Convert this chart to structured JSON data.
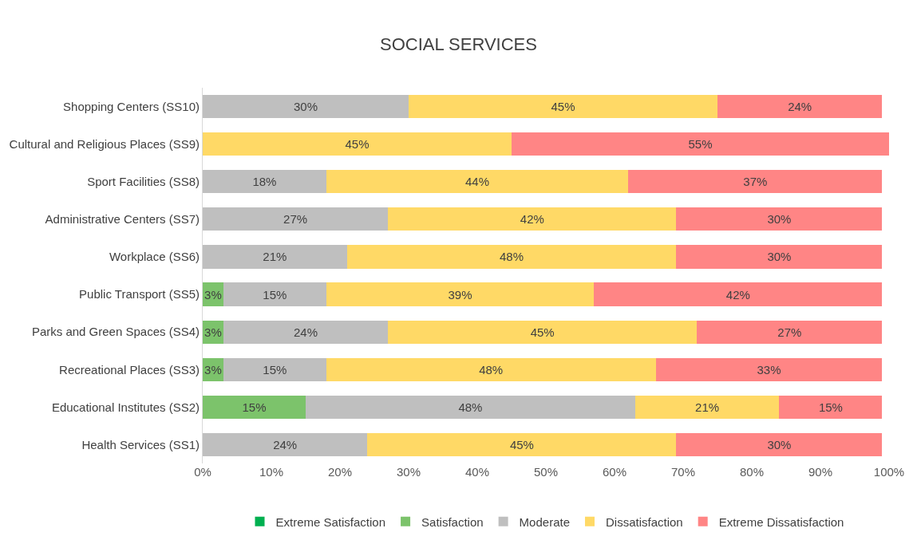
{
  "chart_data": {
    "type": "bar",
    "orientation": "horizontal",
    "stacked": true,
    "title": "SOCIAL SERVICES",
    "categories": [
      "Shopping Centers (SS10)",
      "Cultural and Religious Places (SS9)",
      "Sport Facilities (SS8)",
      "Administrative Centers (SS7)",
      "Workplace (SS6)",
      "Public Transport (SS5)",
      "Parks and Green Spaces (SS4)",
      "Recreational Places (SS3)",
      "Educational Institutes (SS2)",
      "Health Services (SS1)"
    ],
    "series": [
      {
        "name": "Extreme Satisfaction",
        "color": "#00b050",
        "values": [
          null,
          null,
          null,
          null,
          null,
          null,
          null,
          null,
          null,
          null
        ],
        "value_labels": [
          null,
          null,
          null,
          null,
          null,
          null,
          null,
          null,
          null,
          null
        ]
      },
      {
        "name": "Satisfaction",
        "color": "#7cc36b",
        "values": [
          null,
          null,
          null,
          null,
          null,
          3,
          3,
          3,
          15,
          null
        ],
        "value_labels": [
          null,
          null,
          null,
          null,
          null,
          "3%",
          "3%",
          "3%",
          "15%",
          null
        ]
      },
      {
        "name": "Moderate",
        "color": "#bfbfbf",
        "values": [
          30,
          null,
          18,
          27,
          21,
          15,
          24,
          15,
          48,
          24
        ],
        "value_labels": [
          "30%",
          null,
          "18%",
          "27%",
          "21%",
          "15%",
          "24%",
          "15%",
          "48%",
          "24%"
        ]
      },
      {
        "name": "Dissatisfaction",
        "color": "#ffd966",
        "values": [
          45,
          45,
          44,
          42,
          48,
          39,
          45,
          48,
          21,
          45
        ],
        "value_labels": [
          "45%",
          "45%",
          "44%",
          "42%",
          "48%",
          "39%",
          "45%",
          "48%",
          "21%",
          "45%"
        ]
      },
      {
        "name": "Extreme Dissatisfaction",
        "color": "#ff8585",
        "values": [
          24,
          55,
          37,
          30,
          30,
          42,
          27,
          33,
          15,
          30
        ],
        "value_labels": [
          "24%",
          "55%",
          "37%",
          "30%",
          "30%",
          "42%",
          "27%",
          "33%",
          "15%",
          "30%"
        ]
      }
    ],
    "xlim": [
      0,
      100
    ],
    "xticks": [
      {
        "value": 0,
        "label": "0%"
      },
      {
        "value": 10,
        "label": "10%"
      },
      {
        "value": 20,
        "label": "20%"
      },
      {
        "value": 30,
        "label": "30%"
      },
      {
        "value": 40,
        "label": "40%"
      },
      {
        "value": 50,
        "label": "50%"
      },
      {
        "value": 60,
        "label": "60%"
      },
      {
        "value": 70,
        "label": "70%"
      },
      {
        "value": 80,
        "label": "80%"
      },
      {
        "value": 90,
        "label": "90%"
      },
      {
        "value": 100,
        "label": "100%"
      }
    ],
    "legend": "bottom"
  }
}
